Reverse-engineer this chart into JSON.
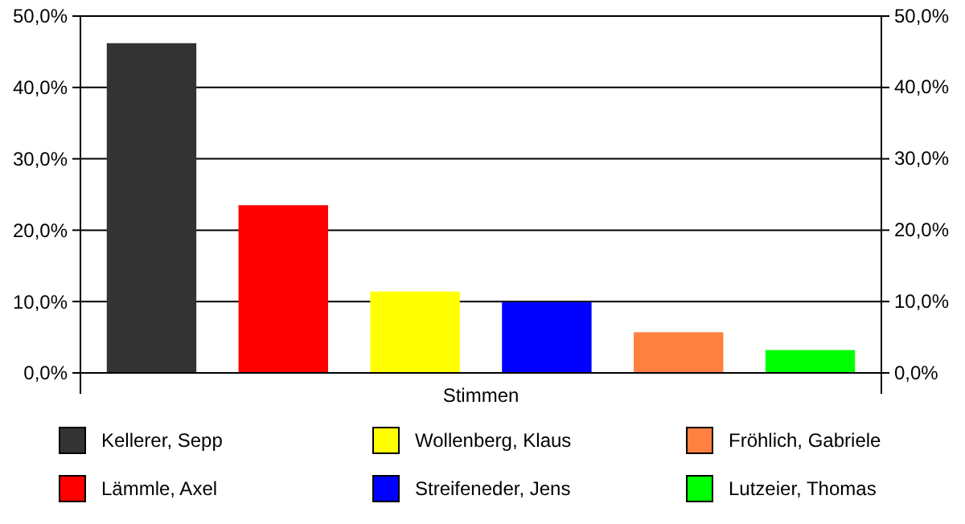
{
  "chart_data": {
    "type": "bar",
    "categories": [
      "Stimmen"
    ],
    "series": [
      {
        "name": "Kellerer, Sepp",
        "color": "#333333",
        "values": [
          46.2
        ]
      },
      {
        "name": "Lämmle, Axel",
        "color": "#ff0000",
        "values": [
          23.5
        ]
      },
      {
        "name": "Wollenberg, Klaus",
        "color": "#ffff00",
        "values": [
          11.4
        ]
      },
      {
        "name": "Streifeneder, Jens",
        "color": "#0000ff",
        "values": [
          9.9
        ]
      },
      {
        "name": "Fröhlich, Gabriele",
        "color": "#ff8040",
        "values": [
          5.7
        ]
      },
      {
        "name": "Lutzeier, Thomas",
        "color": "#00ff00",
        "values": [
          3.2
        ]
      }
    ],
    "ylim": [
      0,
      50
    ],
    "yticks": [
      {
        "value": 0,
        "label": "0,0%"
      },
      {
        "value": 10,
        "label": "10,0%"
      },
      {
        "value": 20,
        "label": "20,0%"
      },
      {
        "value": 30,
        "label": "30,0%"
      },
      {
        "value": 40,
        "label": "40,0%"
      },
      {
        "value": 50,
        "label": "50,0%"
      }
    ],
    "grid": "y",
    "legend": "bottom"
  }
}
